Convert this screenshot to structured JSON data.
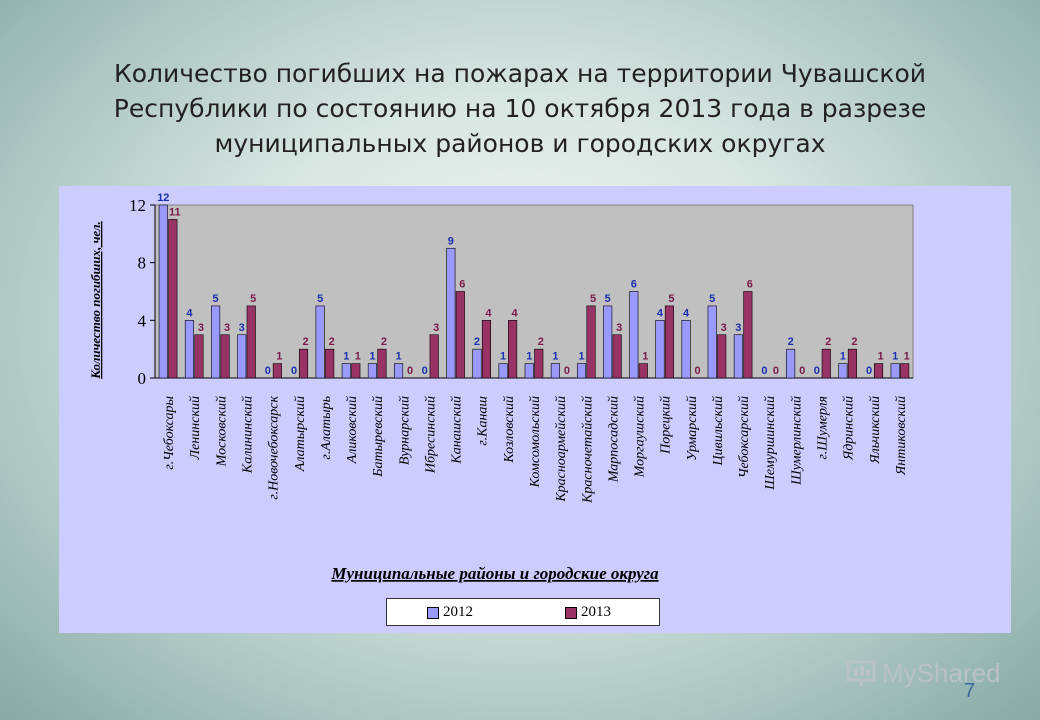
{
  "slide": {
    "title": "Количество погибших на пожарах на территории Чувашской Республики по состоянию на 10 октября 2013 года в разрезе муниципальных районов и городских округах",
    "page_number": "7",
    "watermark": "MyShared"
  },
  "colors": {
    "series_2012": "#9999ff",
    "series_2013": "#993366",
    "plot_background": "#c0c0c0",
    "panel_background": "#ccccff",
    "label_2012": "#1a2fb0",
    "label_2013": "#7a1a4a"
  },
  "chart_data": {
    "type": "bar",
    "title": "",
    "ylabel": "Количество погибших, чел.",
    "xlabel": "Муниципальные районы и городские округа",
    "ylim": [
      0,
      12
    ],
    "yticks": [
      "0",
      "4",
      "8",
      "12"
    ],
    "grid": false,
    "legend_position": "bottom",
    "categories": [
      "г.Чебоксары",
      "Ленинский",
      "Московский",
      "Калининский",
      "г.Новочебоксарск",
      "Алатырский",
      "г.Алатырь",
      "Аликовский",
      "Батыревский",
      "Вурнарский",
      "Ибресинский",
      "Канашский",
      "г.Канаш",
      "Козловский",
      "Комсомольский",
      "Красноармейский",
      "Красночетайский",
      "Марпосадский",
      "Моргаушский",
      "Порецкий",
      "Урмарский",
      "Цивильский",
      "Чебоксарский",
      "Шемуршинский",
      "Шумерлинский",
      "г.Шумерля",
      "Ядринский",
      "Яльчикский",
      "Янтиковский"
    ],
    "series": [
      {
        "name": "2012",
        "values": [
          12,
          4,
          5,
          3,
          0,
          0,
          5,
          1,
          1,
          1,
          0,
          9,
          2,
          1,
          1,
          1,
          1,
          5,
          6,
          4,
          4,
          5,
          3,
          0,
          2,
          0,
          1,
          0,
          1
        ]
      },
      {
        "name": "2013",
        "values": [
          11,
          3,
          3,
          5,
          1,
          2,
          2,
          1,
          2,
          0,
          3,
          6,
          4,
          4,
          2,
          0,
          5,
          3,
          1,
          5,
          0,
          3,
          6,
          0,
          0,
          2,
          2,
          1,
          1
        ]
      }
    ]
  }
}
